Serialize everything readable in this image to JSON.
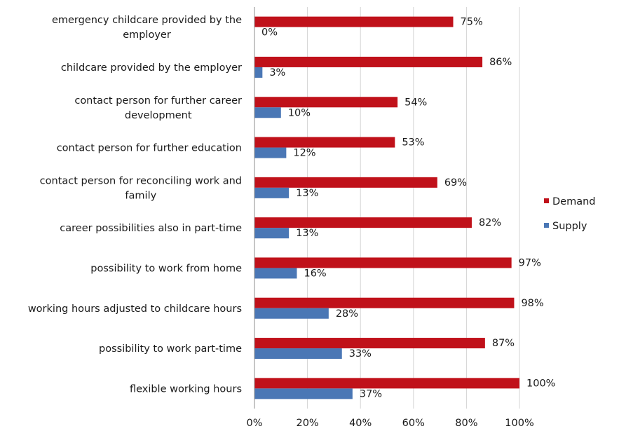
{
  "chart_data": {
    "type": "bar",
    "orientation": "horizontal",
    "categories": [
      "emergency childcare provided by the employer",
      "childcare provided by the employer",
      "contact person for further career development",
      "contact person for further education",
      "contact person for reconciling work and family",
      "career possibilities also in part-time",
      "possibility to work from home",
      "working hours adjusted to childcare hours",
      "possibility to work part-time",
      "flexible working hours"
    ],
    "category_lines": [
      [
        "emergency childcare provided by the",
        "employer"
      ],
      [
        "childcare provided by the employer"
      ],
      [
        "contact person for further career",
        "development"
      ],
      [
        "contact person for further education"
      ],
      [
        "contact person for reconciling work and",
        "family"
      ],
      [
        "career possibilities also in part-time"
      ],
      [
        "possibility to work from home"
      ],
      [
        "working hours adjusted to childcare hours"
      ],
      [
        "possibility to work part-time"
      ],
      [
        "flexible working hours"
      ]
    ],
    "series": [
      {
        "name": "Demand",
        "color": "#c0111a",
        "values": [
          75,
          86,
          54,
          53,
          69,
          82,
          97,
          98,
          87,
          100
        ],
        "labels": [
          "75%",
          "86%",
          "54%",
          "53%",
          "69%",
          "82%",
          "97%",
          "98%",
          "87%",
          "100%"
        ]
      },
      {
        "name": "Supply",
        "color": "#4a77b5",
        "values": [
          0,
          3,
          10,
          12,
          13,
          13,
          16,
          28,
          33,
          37
        ],
        "labels": [
          "0%",
          "3%",
          "10%",
          "12%",
          "13%",
          "13%",
          "16%",
          "28%",
          "33%",
          "37%"
        ]
      }
    ],
    "xlim": [
      0,
      100
    ],
    "xticks": [
      0,
      20,
      40,
      60,
      80,
      100
    ],
    "xtick_labels": [
      "0%",
      "20%",
      "40%",
      "60%",
      "80%",
      "100%"
    ],
    "grid": true,
    "legend_position": "right"
  }
}
